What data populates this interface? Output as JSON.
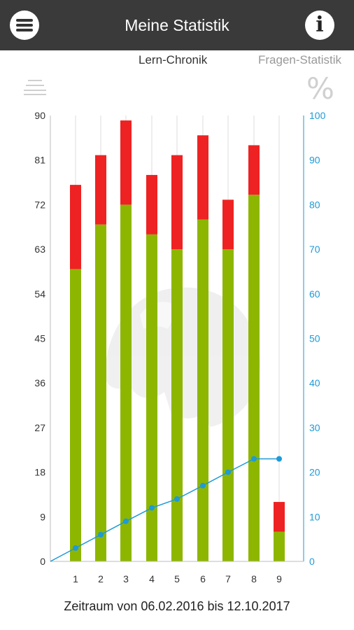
{
  "app_bar": {
    "title": "Meine Statistik",
    "menu_icon": "hamburger-menu-icon",
    "info_icon": "info-icon",
    "info_glyph": "i"
  },
  "tabs": {
    "lern_chronik": "Lern-Chronik",
    "fragen_statistik": "Fragen-Statistik"
  },
  "icons": {
    "left": "list-icon",
    "right": "percent-icon",
    "right_glyph": "%"
  },
  "footer": {
    "period": "Zeitraum von 06.02.2016 bis 12.10.2017"
  },
  "colors": {
    "correct": "#8db600",
    "wrong": "#ee2222",
    "line": "#1e9ad6",
    "right_axis": "#1e9ad6"
  },
  "chart_data": {
    "type": "bar",
    "categories": [
      "1",
      "2",
      "3",
      "4",
      "5",
      "6",
      "7",
      "8",
      "9"
    ],
    "stacked": true,
    "series": [
      {
        "values": [
          59,
          68,
          72,
          66,
          63,
          69,
          63,
          74,
          6
        ]
      },
      {
        "values": [
          17,
          14,
          17,
          12,
          19,
          17,
          10,
          10,
          6
        ]
      }
    ],
    "line_series": {
      "axis": "right",
      "values": [
        3,
        6,
        9,
        12,
        14,
        17,
        20,
        23,
        23
      ]
    },
    "y_left": {
      "min": 0,
      "max": 90,
      "ticks": [
        0,
        9,
        18,
        27,
        36,
        45,
        54,
        63,
        72,
        81,
        90
      ]
    },
    "y_right": {
      "min": 0,
      "max": 100,
      "ticks": [
        0,
        10,
        20,
        30,
        40,
        50,
        60,
        70,
        80,
        90,
        100
      ]
    },
    "grid": "vertical"
  }
}
